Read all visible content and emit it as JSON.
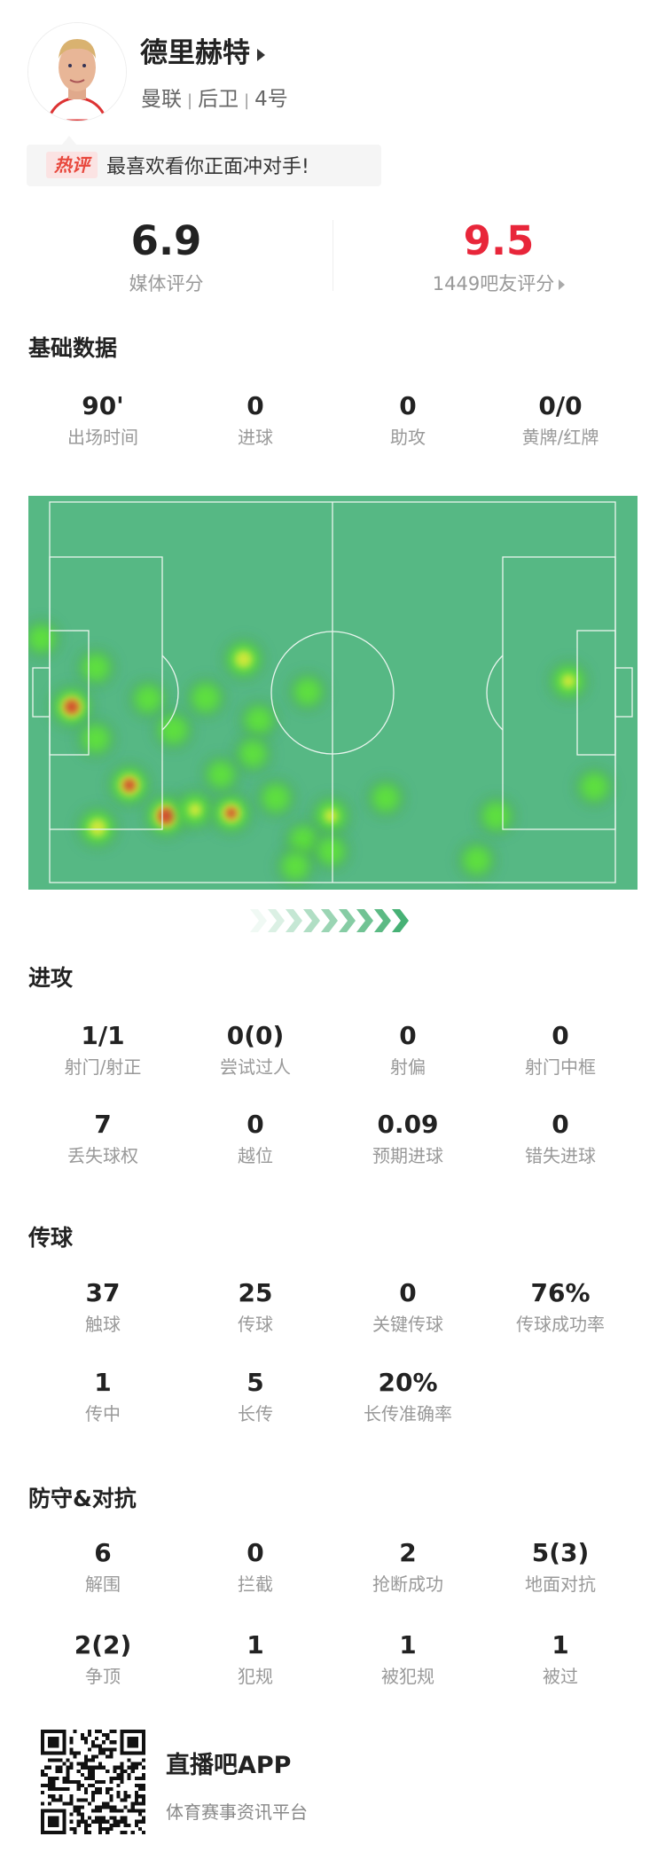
{
  "player": {
    "name": "德里赫特",
    "team": "曼联",
    "position": "后卫",
    "number": "4号"
  },
  "hot_comment": {
    "tag": "热评",
    "text": "最喜欢看你正面冲对手!"
  },
  "ratings": {
    "media": {
      "value": "6.9",
      "label": "媒体评分"
    },
    "fans": {
      "value": "9.5",
      "label": "1449吧友评分",
      "color": "#e8263a"
    }
  },
  "sections": {
    "basic": {
      "title": "基础数据",
      "rows": [
        [
          {
            "value": "90'",
            "label": "出场时间"
          },
          {
            "value": "0",
            "label": "进球"
          },
          {
            "value": "0",
            "label": "助攻"
          },
          {
            "value": "0/0",
            "label": "黄牌/红牌"
          }
        ]
      ]
    },
    "attack": {
      "title": "进攻",
      "rows": [
        [
          {
            "value": "1/1",
            "label": "射门/射正"
          },
          {
            "value": "0(0)",
            "label": "尝试过人"
          },
          {
            "value": "0",
            "label": "射偏"
          },
          {
            "value": "0",
            "label": "射门中框"
          }
        ],
        [
          {
            "value": "7",
            "label": "丢失球权"
          },
          {
            "value": "0",
            "label": "越位"
          },
          {
            "value": "0.09",
            "label": "预期进球"
          },
          {
            "value": "0",
            "label": "错失进球"
          }
        ]
      ]
    },
    "passing": {
      "title": "传球",
      "rows": [
        [
          {
            "value": "37",
            "label": "触球"
          },
          {
            "value": "25",
            "label": "传球"
          },
          {
            "value": "0",
            "label": "关键传球"
          },
          {
            "value": "76%",
            "label": "传球成功率"
          }
        ],
        [
          {
            "value": "1",
            "label": "传中"
          },
          {
            "value": "5",
            "label": "长传"
          },
          {
            "value": "20%",
            "label": "长传准确率"
          }
        ]
      ]
    },
    "defense": {
      "title": "防守&对抗",
      "rows": [
        [
          {
            "value": "6",
            "label": "解围"
          },
          {
            "value": "0",
            "label": "拦截"
          },
          {
            "value": "2",
            "label": "抢断成功"
          },
          {
            "value": "5(3)",
            "label": "地面对抗"
          }
        ],
        [
          {
            "value": "2(2)",
            "label": "争顶"
          },
          {
            "value": "1",
            "label": "犯规"
          },
          {
            "value": "1",
            "label": "被犯规"
          },
          {
            "value": "1",
            "label": "被过"
          }
        ]
      ]
    }
  },
  "chart_data": {
    "type": "heatmap",
    "pitch_length_m": 105,
    "pitch_width_m": 68,
    "pitch_color": "#56b884",
    "points": [
      {
        "x": -1.5,
        "y": 24.4,
        "intensity": 0.35
      },
      {
        "x": 8.6,
        "y": 29.6,
        "intensity": 0.4
      },
      {
        "x": 4.1,
        "y": 36.6,
        "intensity": 0.95
      },
      {
        "x": 8.6,
        "y": 42.3,
        "intensity": 0.4
      },
      {
        "x": 18.3,
        "y": 35.2,
        "intensity": 0.4
      },
      {
        "x": 23.0,
        "y": 40.7,
        "intensity": 0.5
      },
      {
        "x": 29.0,
        "y": 35.0,
        "intensity": 0.5
      },
      {
        "x": 36.0,
        "y": 28.1,
        "intensity": 0.75
      },
      {
        "x": 38.8,
        "y": 39.0,
        "intensity": 0.4
      },
      {
        "x": 37.7,
        "y": 45.0,
        "intensity": 0.4
      },
      {
        "x": 47.9,
        "y": 33.9,
        "intensity": 0.4
      },
      {
        "x": 96.3,
        "y": 32.0,
        "intensity": 0.6
      },
      {
        "x": 14.8,
        "y": 50.6,
        "intensity": 0.9
      },
      {
        "x": 8.9,
        "y": 58.2,
        "intensity": 0.75
      },
      {
        "x": 21.6,
        "y": 56.1,
        "intensity": 1.0
      },
      {
        "x": 27.0,
        "y": 55.0,
        "intensity": 0.6
      },
      {
        "x": 33.7,
        "y": 55.6,
        "intensity": 0.85
      },
      {
        "x": 31.8,
        "y": 48.7,
        "intensity": 0.35
      },
      {
        "x": 42.0,
        "y": 52.9,
        "intensity": 0.45
      },
      {
        "x": 52.2,
        "y": 56.1,
        "intensity": 0.6
      },
      {
        "x": 62.4,
        "y": 52.9,
        "intensity": 0.4
      },
      {
        "x": 47.1,
        "y": 60.4,
        "intensity": 0.4
      },
      {
        "x": 52.2,
        "y": 62.4,
        "intensity": 0.4
      },
      {
        "x": 45.6,
        "y": 65.1,
        "intensity": 0.4
      },
      {
        "x": 82.9,
        "y": 56.1,
        "intensity": 0.45
      },
      {
        "x": 79.3,
        "y": 64.0,
        "intensity": 0.45
      },
      {
        "x": 101.1,
        "y": 50.9,
        "intensity": 0.45
      }
    ]
  },
  "footer": {
    "app_name": "直播吧APP",
    "tagline": "体育赛事资讯平台"
  }
}
